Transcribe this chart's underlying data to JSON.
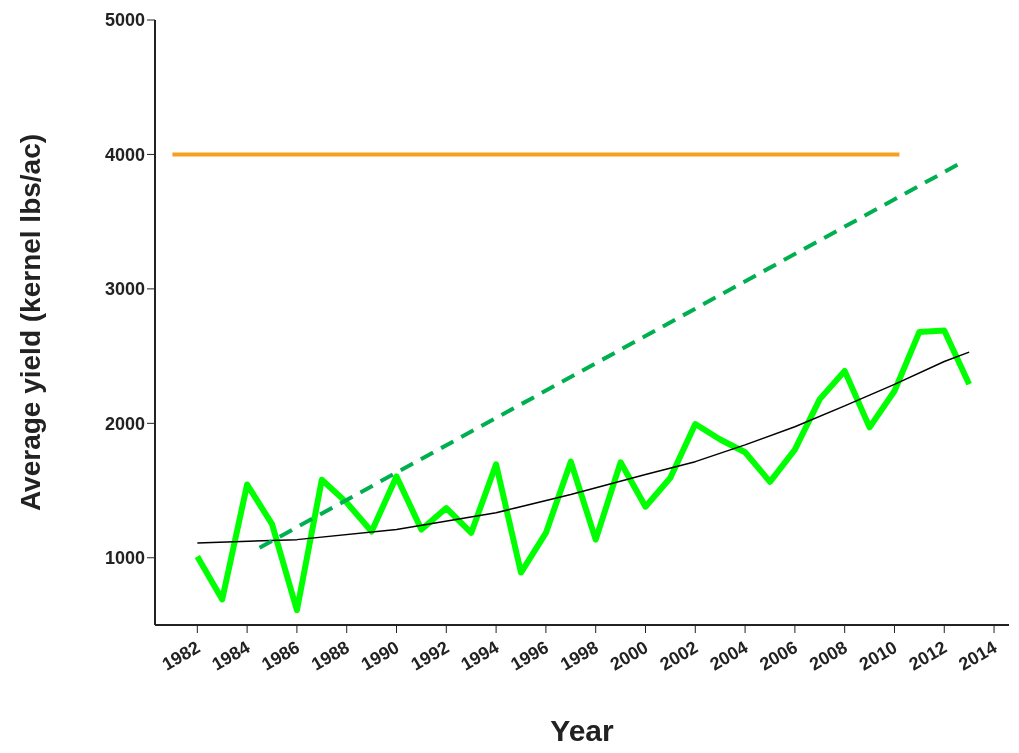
{
  "chart_data": {
    "type": "line",
    "xlabel": "Year",
    "ylabel": "Average yield (kernel lbs/ac)",
    "xlim": [
      1980.3,
      2014.6
    ],
    "xticks": [
      1982,
      1984,
      1986,
      1988,
      1990,
      1992,
      1994,
      1996,
      1998,
      2000,
      2002,
      2004,
      2006,
      2008,
      2010,
      2012,
      2014
    ],
    "ylim": [
      500,
      5000
    ],
    "yticks": [
      1000,
      2000,
      3000,
      4000,
      5000
    ],
    "marker": "none",
    "line_style": "solid",
    "series": [
      {
        "color": "#00ff00",
        "x": [
          1982,
          1983,
          1984,
          1985,
          1986,
          1987,
          1988,
          1989,
          1990,
          1991,
          1992,
          1993,
          1994,
          1995,
          1996,
          1997,
          1998,
          1999,
          2000,
          2001,
          2002,
          2003,
          2004,
          2005,
          2006,
          2007,
          2008,
          2009,
          2010,
          2011,
          2012,
          2013
        ],
        "values": [
          1010,
          690,
          1545,
          1250,
          610,
          1580,
          1410,
          1195,
          1605,
          1210,
          1370,
          1185,
          1695,
          890,
          1185,
          1715,
          1135,
          1710,
          1380,
          1595,
          1995,
          1880,
          1785,
          1565,
          1805,
          2180,
          2390,
          1970,
          2240,
          2680,
          2690,
          2290
        ]
      },
      {
        "color": "#000000",
        "x": [
          1982,
          1986,
          1990,
          1994,
          1997,
          2000,
          2002,
          2004,
          2006,
          2008,
          2010,
          2012,
          2013
        ],
        "values": [
          1110,
          1135,
          1210,
          1335,
          1470,
          1620,
          1715,
          1840,
          1975,
          2130,
          2290,
          2460,
          2530
        ]
      },
      {
        "color": "#00b050",
        "line_style": "dashed",
        "x": [
          1984.5,
          2012.6
        ],
        "values": [
          1075,
          3930
        ]
      },
      {
        "color": "#f7a020",
        "x": [
          1981,
          2010.2
        ],
        "values": [
          4000,
          4000
        ]
      }
    ]
  }
}
